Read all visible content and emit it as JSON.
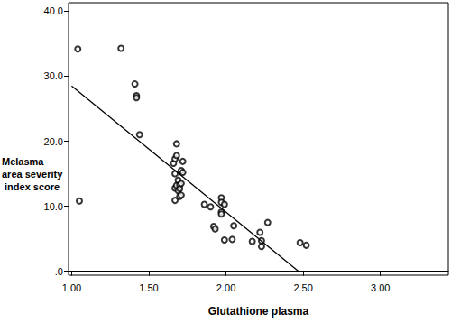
{
  "chart_data": {
    "type": "scatter",
    "x_label": "Glutathione plasma",
    "y_label": "Melasma area severity index score",
    "xlim": [
      0.98,
      3.44
    ],
    "ylim": [
      -0.6,
      41.3
    ],
    "xticks": [
      {
        "value": 1,
        "label": "1.00"
      },
      {
        "value": 1.5,
        "label": "1.50"
      },
      {
        "value": 2,
        "label": "2.00"
      },
      {
        "value": 2.5,
        "label": "2.50"
      },
      {
        "value": 3,
        "label": "3.00"
      }
    ],
    "yticks": [
      {
        "value": 0,
        "label": ".0"
      },
      {
        "value": 10,
        "label": "10.0"
      },
      {
        "value": 20,
        "label": "20.0"
      },
      {
        "value": 30,
        "label": "30.0"
      },
      {
        "value": 40,
        "label": "40.0"
      }
    ],
    "grid": false,
    "series": [
      {
        "type": "scatter",
        "marker": "emptyCircle",
        "color": "#000000",
        "x": [
          1.04,
          1.05,
          1.32,
          1.41,
          1.42,
          1.42,
          1.44,
          1.66,
          1.67,
          1.67,
          1.67,
          1.67,
          1.68,
          1.68,
          1.68,
          1.69,
          1.69,
          1.7,
          1.7,
          1.7,
          1.71,
          1.71,
          1.71,
          1.72,
          1.72,
          1.86,
          1.9,
          1.92,
          1.93,
          1.97,
          1.97,
          1.97,
          1.97,
          1.99,
          1.99,
          2.04,
          2.05,
          2.17,
          2.22,
          2.23,
          2.23,
          2.27,
          2.48,
          2.52
        ],
        "values": [
          34.2,
          10.8,
          34.3,
          28.8,
          27.0,
          26.7,
          21.0,
          16.6,
          17.3,
          15.0,
          12.8,
          10.9,
          17.8,
          19.6,
          13.2,
          12.4,
          14.0,
          13.3,
          12.7,
          11.5,
          15.5,
          13.5,
          11.7,
          16.9,
          15.2,
          10.3,
          9.9,
          6.9,
          6.5,
          11.3,
          10.6,
          9.1,
          8.8,
          10.3,
          4.8,
          4.9,
          7.0,
          4.6,
          6.0,
          4.7,
          3.8,
          7.5,
          4.4,
          4.0
        ]
      },
      {
        "type": "line",
        "line_style": "solid",
        "color": "#000000",
        "x": [
          1.0,
          2.47
        ],
        "values": [
          28.5,
          0
        ]
      }
    ]
  }
}
